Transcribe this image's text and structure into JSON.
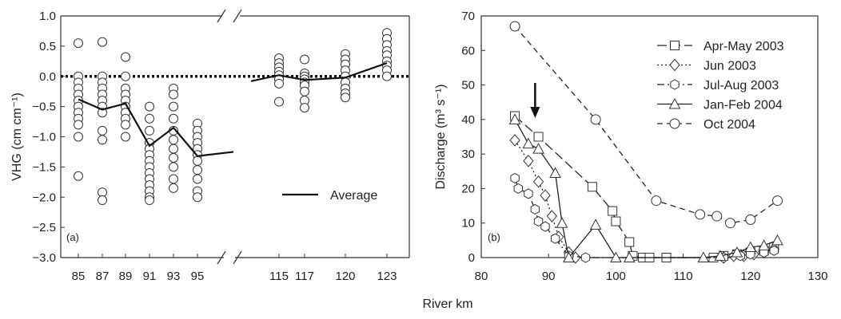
{
  "xlabel": "River km",
  "chart_data": [
    {
      "type": "scatter",
      "panel_label": "(a)",
      "ylabel": "VHG (cm cm⁻¹)",
      "ylim": [
        -3.0,
        1.0
      ],
      "yticks": [
        1.0,
        0.5,
        0.0,
        -0.5,
        -1.0,
        -1.5,
        -2.0,
        -2.5,
        -3.0
      ],
      "ytick_labels": [
        "1.0",
        "0.5",
        "0.0",
        "−0.5",
        "−1.0",
        "−1.5",
        "−2.0",
        "−2.5",
        "−3.0"
      ],
      "broken_x_axis": true,
      "categories": [
        "85",
        "87",
        "89",
        "91",
        "93",
        "95",
        "115",
        "117",
        "120",
        "123"
      ],
      "zero_line": "dotted",
      "legend": [
        "Average"
      ],
      "points": [
        [
          0.55,
          0.0,
          -0.1,
          -0.2,
          -0.3,
          -0.4,
          -0.5,
          -0.6,
          -0.7,
          -0.8,
          -1.0,
          -1.65
        ],
        [
          0.57,
          0.0,
          -0.1,
          -0.2,
          -0.3,
          -0.4,
          -0.5,
          -0.6,
          -0.9,
          -1.05,
          -1.92,
          -2.05
        ],
        [
          0.32,
          0.0,
          -0.2,
          -0.3,
          -0.4,
          -0.5,
          -0.6,
          -0.7,
          -0.8,
          -1.0
        ],
        [
          -0.5,
          -0.7,
          -0.9,
          -1.1,
          -1.2,
          -1.3,
          -1.4,
          -1.5,
          -1.6,
          -1.7,
          -1.8,
          -1.9,
          -2.0,
          -2.05
        ],
        [
          -0.2,
          -0.3,
          -0.5,
          -0.7,
          -0.9,
          -1.05,
          -1.2,
          -1.35,
          -1.5,
          -1.7,
          -1.85
        ],
        [
          -0.78,
          -0.9,
          -1.0,
          -1.1,
          -1.2,
          -1.3,
          -1.4,
          -1.55,
          -1.7,
          -1.9,
          -2.0
        ],
        [
          0.3,
          0.22,
          0.15,
          0.08,
          0.02,
          -0.05,
          -0.12,
          -0.42
        ],
        [
          0.28,
          0.05,
          0.0,
          -0.05,
          -0.1,
          -0.15,
          -0.25,
          -0.4,
          -0.52
        ],
        [
          0.37,
          0.28,
          0.2,
          0.1,
          0.0,
          -0.1,
          -0.2,
          -0.28,
          -0.35
        ],
        [
          0.72,
          0.62,
          0.52,
          0.42,
          0.35,
          0.25,
          0.18,
          0.1,
          0.0
        ]
      ],
      "average": [
        -0.38,
        -0.55,
        -0.45,
        -1.15,
        -0.85,
        -1.32,
        0.02,
        -0.06,
        -0.02,
        0.22
      ],
      "average_line_extension": {
        "left_of_95": -1.25,
        "right_of_115": -0.08
      }
    },
    {
      "type": "line",
      "panel_label": "(b)",
      "ylabel": "Discharge (m³ s⁻¹)",
      "xlim": [
        80,
        130
      ],
      "ylim": [
        0,
        70
      ],
      "xticks": [
        80,
        90,
        100,
        110,
        120,
        130
      ],
      "yticks": [
        0,
        10,
        20,
        30,
        40,
        50,
        60,
        70
      ],
      "annotation": "downward arrow at river km ~88",
      "legend_position": "top-right",
      "series": [
        {
          "name": "Apr-May 2003",
          "marker": "square",
          "dash": "long-dash",
          "x": [
            85,
            88.5,
            96.5,
            99.5,
            100,
            102,
            102.5,
            104,
            105,
            107.5,
            114.5,
            116,
            118,
            120,
            122,
            123.5
          ],
          "y": [
            41,
            35,
            20.5,
            13.5,
            10.5,
            4.5,
            0.5,
            0,
            0,
            0,
            0,
            0.5,
            1,
            1.5,
            2,
            3
          ]
        },
        {
          "name": "Jun 2003",
          "marker": "diamond",
          "dash": "dotted",
          "x": [
            85,
            87,
            88.5,
            89.5,
            90.5,
            91.5,
            93,
            94,
            116,
            117.5,
            119,
            120.5,
            122,
            123.5
          ],
          "y": [
            34,
            28,
            22,
            18,
            12,
            6,
            1.5,
            0,
            0,
            0.5,
            0.5,
            1,
            1.5,
            2.5
          ]
        },
        {
          "name": "Jul-Aug 2003",
          "marker": "hexagon",
          "dash": "dash-dot",
          "x": [
            85,
            85.5,
            87,
            88,
            88.5,
            89.5,
            91,
            93,
            95.5,
            116,
            118.5,
            120,
            122,
            123.5
          ],
          "y": [
            23,
            20,
            18.5,
            14,
            10.5,
            9,
            5.5,
            0.5,
            0,
            0,
            0.5,
            1,
            1.5,
            2
          ]
        },
        {
          "name": "Jan-Feb 2004",
          "marker": "triangle",
          "dash": "solid",
          "x": [
            85,
            87,
            88.5,
            91,
            92,
            93,
            97,
            100,
            102,
            113,
            115.5,
            118,
            120,
            122,
            124
          ],
          "y": [
            40,
            33,
            31.5,
            24.5,
            10,
            0,
            9.5,
            0,
            0,
            0,
            0.5,
            1.5,
            3,
            3.5,
            5
          ]
        },
        {
          "name": "Oct 2004",
          "marker": "circle",
          "dash": "short-dash",
          "x": [
            85,
            97,
            106,
            112.5,
            115,
            117,
            120,
            124
          ],
          "y": [
            67,
            40,
            16.5,
            12.5,
            12,
            10,
            11,
            16.5
          ]
        }
      ]
    }
  ]
}
